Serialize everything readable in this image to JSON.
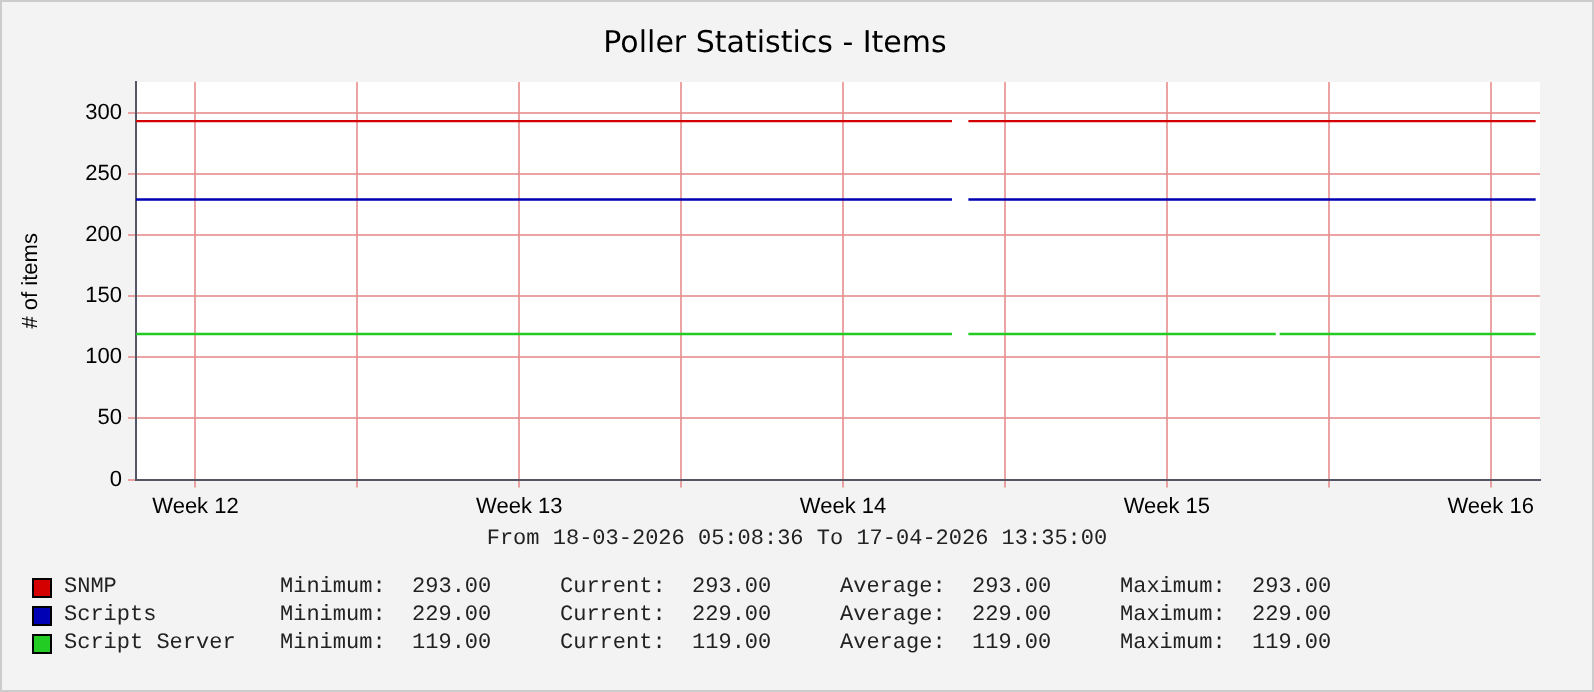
{
  "chart_data": {
    "type": "line",
    "title": "Poller Statistics - Items",
    "ylabel": "# of items",
    "xlim": [
      "2026-03-18T05:08",
      "2026-04-17T13:35"
    ],
    "xticks": [
      {
        "value": "2026-03-19T12:00",
        "label": "Week 12"
      },
      {
        "value": "2026-03-23T00:00",
        "label": null
      },
      {
        "value": "2026-03-26T12:00",
        "label": "Week 13"
      },
      {
        "value": "2026-03-30T00:00",
        "label": null
      },
      {
        "value": "2026-04-02T12:00",
        "label": "Week 14"
      },
      {
        "value": "2026-04-06T00:00",
        "label": null
      },
      {
        "value": "2026-04-09T12:00",
        "label": "Week 15"
      },
      {
        "value": "2026-04-13T00:00",
        "label": null
      },
      {
        "value": "2026-04-16T12:00",
        "label": "Week 16"
      }
    ],
    "ylim": [
      0,
      325
    ],
    "yticks": [
      0,
      50,
      100,
      150,
      200,
      250,
      300
    ],
    "grid": true,
    "legend": "bottom",
    "marker": "none",
    "line_style": "solid",
    "series": [
      {
        "name": "SNMP",
        "color": "#d40000",
        "x": [
          "2026-03-18T05:08",
          "2026-04-04T20:30",
          "2026-04-05T00:00",
          "2026-04-05T05:00",
          "2026-04-17T11:20"
        ],
        "values": [
          293,
          293,
          null,
          293,
          293
        ]
      },
      {
        "name": "Scripts",
        "color": "#0000b4",
        "x": [
          "2026-03-18T05:08",
          "2026-04-04T20:30",
          "2026-04-05T00:00",
          "2026-04-05T05:00",
          "2026-04-17T11:20"
        ],
        "values": [
          229,
          229,
          null,
          229,
          229
        ]
      },
      {
        "name": "Script Server",
        "color": "#22cc22",
        "x": [
          "2026-03-18T05:08",
          "2026-04-04T20:30",
          "2026-04-05T00:00",
          "2026-04-05T05:00",
          "2026-04-11T20:30",
          "2026-04-11T21:30",
          "2026-04-11T22:30",
          "2026-04-17T11:20"
        ],
        "values": [
          119,
          119,
          null,
          119,
          119,
          null,
          119,
          119
        ]
      }
    ],
    "annotations": [
      "From 18-03-2026 05:08:36 To 17-04-2026 13:35:00",
      "Minimum:  293.00",
      "Current:  293.00",
      "Average:  293.00",
      "Maximum:  293.00",
      "Minimum:  229.00",
      "Current:  229.00",
      "Average:  229.00",
      "Maximum:  229.00",
      "Minimum:  119.00",
      "Current:  119.00",
      "Average:  119.00",
      "Maximum:  119.00"
    ]
  }
}
